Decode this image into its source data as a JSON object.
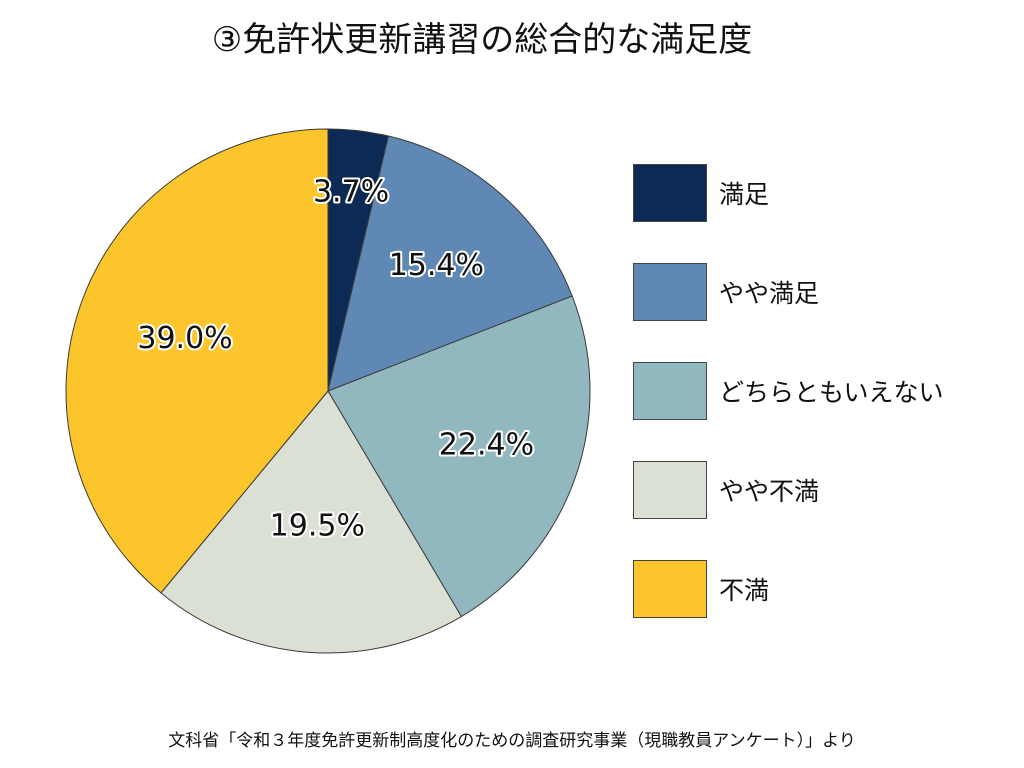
{
  "chart_data": {
    "type": "pie",
    "title": "③免許状更新講習の総合的な満足度",
    "slices": [
      {
        "label": "満足",
        "value": 3.7,
        "value_text": "3.7%",
        "color": "#0d2a55"
      },
      {
        "label": "やや満足",
        "value": 15.4,
        "value_text": "15.4%",
        "color": "#5f88b4"
      },
      {
        "label": "どちらともいえない",
        "value": 22.4,
        "value_text": "22.4%",
        "color": "#92b8bf"
      },
      {
        "label": "やや不満",
        "value": 19.5,
        "value_text": "19.5%",
        "color": "#dbe0d4"
      },
      {
        "label": "不満",
        "value": 39.0,
        "value_text": "39.0%",
        "color": "#fcc52b"
      }
    ],
    "legend_position": "right",
    "start": "12 o'clock",
    "direction": "clockwise"
  },
  "source": "文科省「令和３年度免許更新制高度化のための調査研究事業（現職教員アンケート）」より"
}
